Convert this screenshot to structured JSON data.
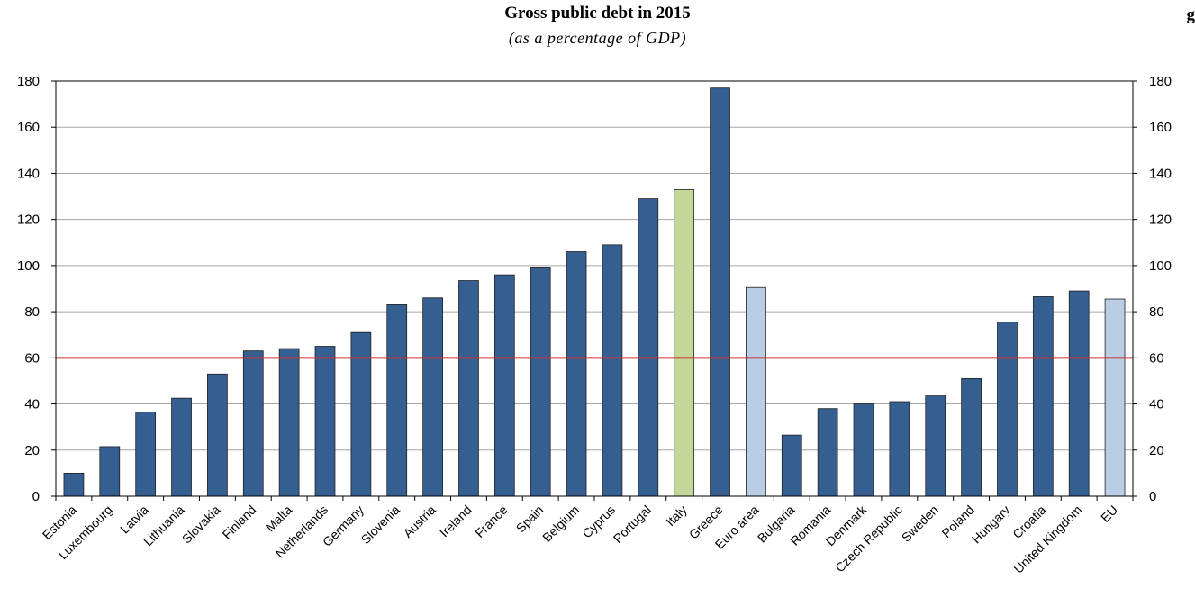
{
  "corner_mark": "g",
  "chart_data": {
    "type": "bar",
    "title": "Gross public debt in 2015",
    "subtitle": "(as a percentage of GDP)",
    "xlabel": "",
    "ylabel": "",
    "ylim": [
      0,
      180
    ],
    "yticks": [
      0,
      20,
      40,
      60,
      80,
      100,
      120,
      140,
      160,
      180
    ],
    "grid": true,
    "legend": "none",
    "reference_line": {
      "value": 60,
      "color": "#cc3333"
    },
    "categories": [
      "Estonia",
      "Luxembourg",
      "Latvia",
      "Lithuania",
      "Slovakia",
      "Finland",
      "Malta",
      "Netherlands",
      "Germany",
      "Slovenia",
      "Austria",
      "Ireland",
      "France",
      "Spain",
      "Belgium",
      "Cyprus",
      "Portugal",
      "Italy",
      "Greece",
      "Euro area",
      "Bulgaria",
      "Romania",
      "Denmark",
      "Czech Republic",
      "Sweden",
      "Poland",
      "Hungary",
      "Croatia",
      "United Kingdom",
      "EU"
    ],
    "values": [
      10,
      21.5,
      36.5,
      42.5,
      53,
      63,
      64,
      65,
      71,
      83,
      86,
      93.5,
      96,
      99,
      106,
      109,
      129,
      133,
      177,
      90.5,
      26.5,
      38,
      40,
      41,
      43.5,
      51,
      75.5,
      86.5,
      89,
      85.5
    ],
    "colors": {
      "country": "#365f91",
      "italy": "#c4d79b",
      "aggregate": "#b9cde5",
      "edge": "#1f1f1f",
      "grid": "#a6a6a6",
      "reference": "#cc3333"
    },
    "bar_kinds": [
      "country",
      "country",
      "country",
      "country",
      "country",
      "country",
      "country",
      "country",
      "country",
      "country",
      "country",
      "country",
      "country",
      "country",
      "country",
      "country",
      "country",
      "italy",
      "country",
      "aggregate",
      "country",
      "country",
      "country",
      "country",
      "country",
      "country",
      "country",
      "country",
      "country",
      "aggregate"
    ]
  }
}
